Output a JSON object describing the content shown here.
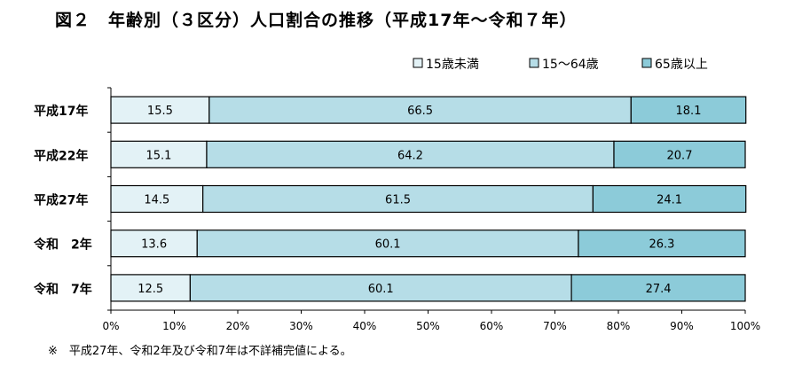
{
  "chart_data": {
    "type": "bar",
    "orientation": "horizontal",
    "stacked": true,
    "title": "図２　年齢別（３区分）人口割合の推移（平成17年～令和７年）",
    "categories": [
      "平成17年",
      "平成22年",
      "平成27年",
      "令和　2年",
      "令和　7年"
    ],
    "series": [
      {
        "name": "15歳未満",
        "values": [
          15.5,
          15.1,
          14.5,
          13.6,
          12.5
        ]
      },
      {
        "name": "15～64歳",
        "values": [
          66.5,
          64.2,
          61.5,
          60.1,
          60.1
        ]
      },
      {
        "name": "65歳以上",
        "values": [
          18.1,
          20.7,
          24.1,
          26.3,
          27.4
        ]
      }
    ],
    "x_ticks": [
      "0%",
      "10%",
      "20%",
      "30%",
      "40%",
      "50%",
      "60%",
      "70%",
      "80%",
      "90%",
      "100%"
    ],
    "xlim": [
      0,
      100
    ],
    "legend_position": "top-right",
    "grid": false,
    "colors": [
      "#e3f2f6",
      "#b6dde7",
      "#8ccbd9"
    ],
    "footnote": "※　平成27年、令和2年及び令和7年は不詳補完値による。"
  }
}
